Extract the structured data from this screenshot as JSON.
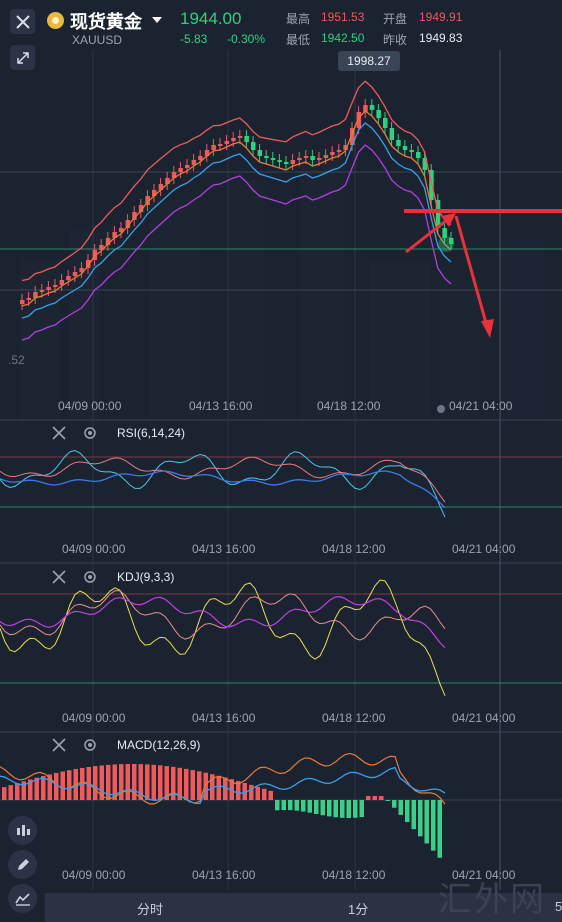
{
  "header": {
    "title": "现货黄金",
    "code": "XAUUSD",
    "price": "1944.00",
    "change": "-5.83",
    "change_pct": "-0.30%",
    "high_label": "最高",
    "high": "1951.53",
    "open_label": "开盘",
    "open": "1949.91",
    "low_label": "最低",
    "low": "1942.50",
    "prev_close_label": "昨收",
    "prev_close": "1949.83"
  },
  "main_chart": {
    "peak_label": "1998.27",
    "left_axis_label": ".52",
    "x_labels": [
      "04/09 00:00",
      "04/13 16:00",
      "04/18 12:00",
      "04/21 04:00"
    ]
  },
  "indicators": {
    "rsi": "RSI(6,14,24)",
    "kdj": "KDJ(9,3,3)",
    "macd": "MACD(12,26,9)"
  },
  "tabs": {
    "timeshare": "分时",
    "one_min": "1分",
    "five_partial": "5"
  },
  "watermark": "汇外网",
  "colors": {
    "bg": "#1b2230",
    "up": "#ef5a5a",
    "down": "#2fd17c",
    "annotation": "#e8323a",
    "ma_blue": "#3a9fe8",
    "ma_purple": "#b040e0",
    "ma_orange": "#e87a3a"
  },
  "icons": [
    "close-icon",
    "collapse-icon",
    "gear-icon",
    "candle-icon",
    "pencil-icon",
    "indicator-icon"
  ]
}
